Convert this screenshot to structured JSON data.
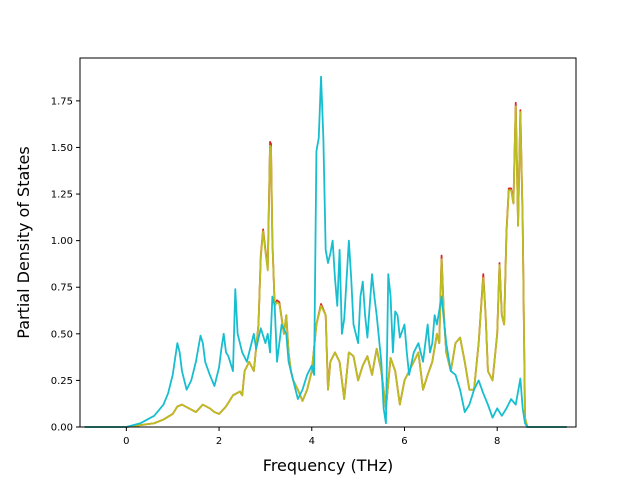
{
  "chart_data": {
    "type": "line",
    "title": "",
    "xlabel": "Frequency (THz)",
    "ylabel": "Partial Density of States",
    "xlim": [
      -1.0,
      9.7
    ],
    "ylim": [
      0.0,
      1.98
    ],
    "xticks": [
      0,
      2,
      4,
      6,
      8
    ],
    "yticks": [
      0.0,
      0.25,
      0.5,
      0.75,
      1.0,
      1.25,
      1.5,
      1.75
    ],
    "ytick_labels": [
      "0.00",
      "0.25",
      "0.50",
      "0.75",
      "1.00",
      "1.25",
      "1.50",
      "1.75"
    ],
    "grid": false,
    "legend": "none",
    "series": [
      {
        "color": "#d62728",
        "points": [
          [
            -0.9,
            0
          ],
          [
            0,
            0
          ],
          [
            0.3,
            0.01
          ],
          [
            0.6,
            0.02
          ],
          [
            0.8,
            0.04
          ],
          [
            1.0,
            0.07
          ],
          [
            1.1,
            0.11
          ],
          [
            1.2,
            0.12
          ],
          [
            1.35,
            0.1
          ],
          [
            1.5,
            0.08
          ],
          [
            1.65,
            0.12
          ],
          [
            1.8,
            0.1
          ],
          [
            1.9,
            0.08
          ],
          [
            2.0,
            0.07
          ],
          [
            2.15,
            0.11
          ],
          [
            2.3,
            0.17
          ],
          [
            2.45,
            0.19
          ],
          [
            2.5,
            0.17
          ],
          [
            2.55,
            0.3
          ],
          [
            2.65,
            0.35
          ],
          [
            2.75,
            0.3
          ],
          [
            2.85,
            0.55
          ],
          [
            2.9,
            0.92
          ],
          [
            2.95,
            1.06
          ],
          [
            3.0,
            0.95
          ],
          [
            3.05,
            0.85
          ],
          [
            3.1,
            1.53
          ],
          [
            3.12,
            1.52
          ],
          [
            3.15,
            1.0
          ],
          [
            3.2,
            0.65
          ],
          [
            3.25,
            0.68
          ],
          [
            3.3,
            0.67
          ],
          [
            3.4,
            0.5
          ],
          [
            3.45,
            0.6
          ],
          [
            3.5,
            0.4
          ],
          [
            3.55,
            0.3
          ],
          [
            3.6,
            0.25
          ],
          [
            3.7,
            0.2
          ],
          [
            3.8,
            0.14
          ],
          [
            3.9,
            0.2
          ],
          [
            4.0,
            0.3
          ],
          [
            4.1,
            0.55
          ],
          [
            4.2,
            0.66
          ],
          [
            4.3,
            0.6
          ],
          [
            4.35,
            0.2
          ],
          [
            4.4,
            0.35
          ],
          [
            4.5,
            0.4
          ],
          [
            4.6,
            0.35
          ],
          [
            4.7,
            0.15
          ],
          [
            4.8,
            0.4
          ],
          [
            4.9,
            0.38
          ],
          [
            5.0,
            0.25
          ],
          [
            5.1,
            0.33
          ],
          [
            5.2,
            0.38
          ],
          [
            5.3,
            0.28
          ],
          [
            5.4,
            0.42
          ],
          [
            5.5,
            0.3
          ],
          [
            5.6,
            0.1
          ],
          [
            5.7,
            0.37
          ],
          [
            5.8,
            0.3
          ],
          [
            5.9,
            0.12
          ],
          [
            6.0,
            0.25
          ],
          [
            6.1,
            0.3
          ],
          [
            6.2,
            0.35
          ],
          [
            6.3,
            0.4
          ],
          [
            6.35,
            0.3
          ],
          [
            6.4,
            0.2
          ],
          [
            6.5,
            0.28
          ],
          [
            6.6,
            0.35
          ],
          [
            6.7,
            0.5
          ],
          [
            6.75,
            0.45
          ],
          [
            6.8,
            0.92
          ],
          [
            6.85,
            0.6
          ],
          [
            6.9,
            0.4
          ],
          [
            7.0,
            0.3
          ],
          [
            7.1,
            0.45
          ],
          [
            7.2,
            0.48
          ],
          [
            7.3,
            0.35
          ],
          [
            7.4,
            0.2
          ],
          [
            7.5,
            0.2
          ],
          [
            7.6,
            0.45
          ],
          [
            7.7,
            0.82
          ],
          [
            7.75,
            0.6
          ],
          [
            7.8,
            0.3
          ],
          [
            7.9,
            0.25
          ],
          [
            8.0,
            0.5
          ],
          [
            8.05,
            0.88
          ],
          [
            8.1,
            0.6
          ],
          [
            8.15,
            0.55
          ],
          [
            8.2,
            1.05
          ],
          [
            8.25,
            1.28
          ],
          [
            8.3,
            1.28
          ],
          [
            8.35,
            1.2
          ],
          [
            8.4,
            1.74
          ],
          [
            8.45,
            1.08
          ],
          [
            8.5,
            1.7
          ],
          [
            8.55,
            1.1
          ],
          [
            8.6,
            0.05
          ],
          [
            8.65,
            0
          ],
          [
            9.5,
            0
          ]
        ]
      },
      {
        "color": "#bcbd22",
        "points": [
          [
            -0.9,
            0
          ],
          [
            0,
            0
          ],
          [
            0.3,
            0.01
          ],
          [
            0.6,
            0.02
          ],
          [
            0.8,
            0.04
          ],
          [
            1.0,
            0.07
          ],
          [
            1.1,
            0.11
          ],
          [
            1.2,
            0.12
          ],
          [
            1.35,
            0.1
          ],
          [
            1.5,
            0.08
          ],
          [
            1.65,
            0.12
          ],
          [
            1.8,
            0.1
          ],
          [
            1.9,
            0.08
          ],
          [
            2.0,
            0.07
          ],
          [
            2.15,
            0.11
          ],
          [
            2.3,
            0.17
          ],
          [
            2.45,
            0.19
          ],
          [
            2.5,
            0.17
          ],
          [
            2.55,
            0.3
          ],
          [
            2.65,
            0.35
          ],
          [
            2.75,
            0.3
          ],
          [
            2.85,
            0.55
          ],
          [
            2.9,
            0.91
          ],
          [
            2.95,
            1.05
          ],
          [
            3.0,
            0.94
          ],
          [
            3.05,
            0.84
          ],
          [
            3.1,
            1.51
          ],
          [
            3.12,
            1.5
          ],
          [
            3.15,
            1.0
          ],
          [
            3.2,
            0.65
          ],
          [
            3.25,
            0.67
          ],
          [
            3.3,
            0.66
          ],
          [
            3.4,
            0.5
          ],
          [
            3.45,
            0.6
          ],
          [
            3.5,
            0.4
          ],
          [
            3.55,
            0.3
          ],
          [
            3.6,
            0.25
          ],
          [
            3.7,
            0.2
          ],
          [
            3.8,
            0.14
          ],
          [
            3.9,
            0.2
          ],
          [
            4.0,
            0.3
          ],
          [
            4.1,
            0.55
          ],
          [
            4.2,
            0.65
          ],
          [
            4.3,
            0.6
          ],
          [
            4.35,
            0.2
          ],
          [
            4.4,
            0.35
          ],
          [
            4.5,
            0.4
          ],
          [
            4.6,
            0.35
          ],
          [
            4.7,
            0.15
          ],
          [
            4.8,
            0.4
          ],
          [
            4.9,
            0.38
          ],
          [
            5.0,
            0.25
          ],
          [
            5.1,
            0.33
          ],
          [
            5.2,
            0.38
          ],
          [
            5.3,
            0.28
          ],
          [
            5.4,
            0.42
          ],
          [
            5.5,
            0.3
          ],
          [
            5.6,
            0.1
          ],
          [
            5.7,
            0.37
          ],
          [
            5.8,
            0.3
          ],
          [
            5.9,
            0.12
          ],
          [
            6.0,
            0.25
          ],
          [
            6.1,
            0.3
          ],
          [
            6.2,
            0.35
          ],
          [
            6.3,
            0.4
          ],
          [
            6.35,
            0.3
          ],
          [
            6.4,
            0.2
          ],
          [
            6.5,
            0.28
          ],
          [
            6.6,
            0.35
          ],
          [
            6.7,
            0.5
          ],
          [
            6.75,
            0.45
          ],
          [
            6.8,
            0.9
          ],
          [
            6.85,
            0.6
          ],
          [
            6.9,
            0.4
          ],
          [
            7.0,
            0.3
          ],
          [
            7.1,
            0.45
          ],
          [
            7.2,
            0.48
          ],
          [
            7.3,
            0.35
          ],
          [
            7.4,
            0.2
          ],
          [
            7.5,
            0.2
          ],
          [
            7.6,
            0.45
          ],
          [
            7.7,
            0.8
          ],
          [
            7.75,
            0.6
          ],
          [
            7.8,
            0.3
          ],
          [
            7.9,
            0.25
          ],
          [
            8.0,
            0.5
          ],
          [
            8.05,
            0.87
          ],
          [
            8.1,
            0.6
          ],
          [
            8.15,
            0.55
          ],
          [
            8.2,
            1.04
          ],
          [
            8.25,
            1.27
          ],
          [
            8.3,
            1.27
          ],
          [
            8.35,
            1.2
          ],
          [
            8.4,
            1.72
          ],
          [
            8.45,
            1.08
          ],
          [
            8.5,
            1.69
          ],
          [
            8.55,
            1.1
          ],
          [
            8.6,
            0.05
          ],
          [
            8.65,
            0
          ],
          [
            9.5,
            0
          ]
        ]
      },
      {
        "color": "#17becf",
        "points": [
          [
            -0.9,
            0
          ],
          [
            0,
            0
          ],
          [
            0.3,
            0.02
          ],
          [
            0.6,
            0.06
          ],
          [
            0.8,
            0.12
          ],
          [
            0.9,
            0.18
          ],
          [
            1.0,
            0.28
          ],
          [
            1.1,
            0.45
          ],
          [
            1.15,
            0.4
          ],
          [
            1.2,
            0.3
          ],
          [
            1.3,
            0.2
          ],
          [
            1.4,
            0.25
          ],
          [
            1.5,
            0.35
          ],
          [
            1.6,
            0.49
          ],
          [
            1.65,
            0.45
          ],
          [
            1.7,
            0.35
          ],
          [
            1.8,
            0.28
          ],
          [
            1.9,
            0.22
          ],
          [
            2.0,
            0.32
          ],
          [
            2.05,
            0.42
          ],
          [
            2.1,
            0.5
          ],
          [
            2.15,
            0.4
          ],
          [
            2.2,
            0.38
          ],
          [
            2.3,
            0.3
          ],
          [
            2.35,
            0.74
          ],
          [
            2.4,
            0.5
          ],
          [
            2.5,
            0.4
          ],
          [
            2.6,
            0.35
          ],
          [
            2.7,
            0.45
          ],
          [
            2.75,
            0.5
          ],
          [
            2.8,
            0.42
          ],
          [
            2.9,
            0.53
          ],
          [
            3.0,
            0.45
          ],
          [
            3.05,
            0.5
          ],
          [
            3.1,
            0.4
          ],
          [
            3.15,
            0.7
          ],
          [
            3.2,
            0.65
          ],
          [
            3.25,
            0.35
          ],
          [
            3.35,
            0.55
          ],
          [
            3.45,
            0.5
          ],
          [
            3.5,
            0.35
          ],
          [
            3.6,
            0.25
          ],
          [
            3.7,
            0.15
          ],
          [
            3.8,
            0.2
          ],
          [
            3.9,
            0.28
          ],
          [
            4.0,
            0.33
          ],
          [
            4.05,
            0.28
          ],
          [
            4.1,
            1.48
          ],
          [
            4.15,
            1.55
          ],
          [
            4.2,
            1.88
          ],
          [
            4.25,
            1.55
          ],
          [
            4.3,
            0.95
          ],
          [
            4.35,
            0.88
          ],
          [
            4.4,
            0.93
          ],
          [
            4.45,
            1.0
          ],
          [
            4.5,
            0.8
          ],
          [
            4.55,
            0.65
          ],
          [
            4.6,
            0.95
          ],
          [
            4.65,
            0.5
          ],
          [
            4.7,
            0.58
          ],
          [
            4.8,
            1.0
          ],
          [
            4.85,
            0.8
          ],
          [
            4.9,
            0.55
          ],
          [
            5.0,
            0.45
          ],
          [
            5.05,
            0.7
          ],
          [
            5.1,
            0.78
          ],
          [
            5.15,
            0.6
          ],
          [
            5.2,
            0.48
          ],
          [
            5.3,
            0.82
          ],
          [
            5.35,
            0.7
          ],
          [
            5.4,
            0.6
          ],
          [
            5.5,
            0.35
          ],
          [
            5.55,
            0.1
          ],
          [
            5.6,
            0.02
          ],
          [
            5.65,
            0.82
          ],
          [
            5.7,
            0.7
          ],
          [
            5.75,
            0.4
          ],
          [
            5.8,
            0.62
          ],
          [
            5.85,
            0.6
          ],
          [
            5.9,
            0.48
          ],
          [
            6.0,
            0.55
          ],
          [
            6.05,
            0.4
          ],
          [
            6.1,
            0.28
          ],
          [
            6.2,
            0.4
          ],
          [
            6.3,
            0.45
          ],
          [
            6.4,
            0.35
          ],
          [
            6.5,
            0.55
          ],
          [
            6.55,
            0.4
          ],
          [
            6.6,
            0.45
          ],
          [
            6.65,
            0.6
          ],
          [
            6.7,
            0.55
          ],
          [
            6.8,
            0.7
          ],
          [
            6.9,
            0.45
          ],
          [
            7.0,
            0.3
          ],
          [
            7.1,
            0.28
          ],
          [
            7.2,
            0.2
          ],
          [
            7.3,
            0.08
          ],
          [
            7.4,
            0.12
          ],
          [
            7.5,
            0.2
          ],
          [
            7.6,
            0.25
          ],
          [
            7.7,
            0.18
          ],
          [
            7.8,
            0.12
          ],
          [
            7.9,
            0.05
          ],
          [
            8.0,
            0.1
          ],
          [
            8.1,
            0.06
          ],
          [
            8.2,
            0.1
          ],
          [
            8.3,
            0.15
          ],
          [
            8.4,
            0.12
          ],
          [
            8.5,
            0.26
          ],
          [
            8.55,
            0.1
          ],
          [
            8.6,
            0.02
          ],
          [
            8.65,
            0
          ],
          [
            9.5,
            0
          ]
        ]
      }
    ]
  }
}
